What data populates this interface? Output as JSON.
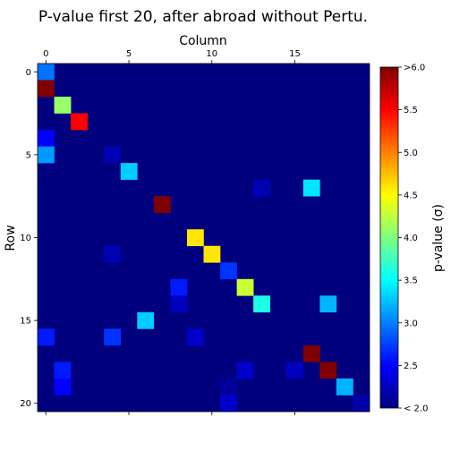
{
  "chart_data": {
    "type": "heatmap",
    "title": "P-value first 20, after abroad without Pertu.",
    "xlabel": "Column",
    "ylabel": "Row",
    "colorbar_label": "p-value (σ)",
    "colormap": "jet",
    "n_rows": 21,
    "n_cols": 20,
    "xlim": [
      -0.5,
      19.5
    ],
    "ylim": [
      20.5,
      -0.5
    ],
    "x_axis_position": "top",
    "x_ticks": [
      0,
      5,
      10,
      15
    ],
    "y_ticks": [
      0,
      5,
      10,
      15,
      20
    ],
    "vmin": 2.0,
    "vmax": 6.0,
    "colorbar_ticks": [
      2.0,
      2.5,
      3.0,
      3.5,
      4.0,
      4.5,
      5.0,
      5.5,
      6.0
    ],
    "colorbar_tick_labels": [
      "< 2.0",
      "2.5",
      "3.0",
      "3.5",
      "4.0",
      "4.5",
      "5.0",
      "5.5",
      ">6.0"
    ],
    "background_value": "< 2.0",
    "cells": [
      {
        "row": 0,
        "col": 0,
        "value": 2.95
      },
      {
        "row": 1,
        "col": 0,
        "value": 6.0
      },
      {
        "row": 2,
        "col": 1,
        "value": 4.1
      },
      {
        "row": 3,
        "col": 2,
        "value": 5.5
      },
      {
        "row": 4,
        "col": 0,
        "value": 2.5
      },
      {
        "row": 5,
        "col": 0,
        "value": 3.1
      },
      {
        "row": 5,
        "col": 4,
        "value": 2.2
      },
      {
        "row": 6,
        "col": 5,
        "value": 3.3
      },
      {
        "row": 7,
        "col": 13,
        "value": 2.2
      },
      {
        "row": 7,
        "col": 16,
        "value": 3.4
      },
      {
        "row": 8,
        "col": 7,
        "value": 6.0
      },
      {
        "row": 10,
        "col": 9,
        "value": 4.6
      },
      {
        "row": 11,
        "col": 4,
        "value": 2.2
      },
      {
        "row": 11,
        "col": 10,
        "value": 4.6
      },
      {
        "row": 12,
        "col": 11,
        "value": 2.7
      },
      {
        "row": 13,
        "col": 8,
        "value": 2.6
      },
      {
        "row": 13,
        "col": 12,
        "value": 4.3
      },
      {
        "row": 14,
        "col": 8,
        "value": 2.25
      },
      {
        "row": 14,
        "col": 13,
        "value": 3.6
      },
      {
        "row": 14,
        "col": 17,
        "value": 3.2
      },
      {
        "row": 15,
        "col": 6,
        "value": 3.3
      },
      {
        "row": 16,
        "col": 0,
        "value": 2.6
      },
      {
        "row": 16,
        "col": 4,
        "value": 2.7
      },
      {
        "row": 16,
        "col": 9,
        "value": 2.3
      },
      {
        "row": 17,
        "col": 16,
        "value": 6.0
      },
      {
        "row": 18,
        "col": 1,
        "value": 2.6
      },
      {
        "row": 18,
        "col": 12,
        "value": 2.3
      },
      {
        "row": 18,
        "col": 15,
        "value": 2.25
      },
      {
        "row": 18,
        "col": 17,
        "value": 6.0
      },
      {
        "row": 19,
        "col": 1,
        "value": 2.5
      },
      {
        "row": 19,
        "col": 11,
        "value": 2.1
      },
      {
        "row": 19,
        "col": 18,
        "value": 3.2
      },
      {
        "row": 20,
        "col": 11,
        "value": 2.3
      },
      {
        "row": 20,
        "col": 19,
        "value": 2.15
      }
    ]
  }
}
